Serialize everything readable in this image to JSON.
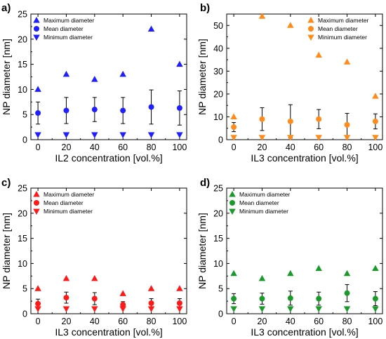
{
  "chart_data": [
    {
      "panel": "a)",
      "type": "scatter",
      "color": "#1f1fff",
      "xlabel": "IL2 concentration [vol.%]",
      "ylabel": "NP diameter [nm]",
      "xlim": [
        -5,
        105
      ],
      "ylim": [
        0,
        25
      ],
      "xticks": [
        0,
        20,
        40,
        60,
        80,
        100
      ],
      "yticks": [
        0,
        5,
        10,
        15,
        20,
        25
      ],
      "legend_position": "top-left",
      "series": [
        {
          "name": "Maximum diameter",
          "marker": "triangle-up",
          "x": [
            0,
            20,
            40,
            60,
            80,
            100
          ],
          "y": [
            10,
            13,
            12,
            13,
            22,
            15
          ]
        },
        {
          "name": "Mean diameter",
          "marker": "circle",
          "x": [
            0,
            20,
            40,
            60,
            80,
            100
          ],
          "y": [
            5.3,
            5.8,
            6.0,
            5.8,
            6.5,
            6.3
          ],
          "error": [
            2.2,
            2.6,
            2.4,
            2.6,
            3.4,
            3.4
          ]
        },
        {
          "name": "Minimum diameter",
          "marker": "triangle-down",
          "x": [
            0,
            20,
            40,
            60,
            80,
            100
          ],
          "y": [
            1,
            1,
            1,
            1,
            1,
            1
          ]
        }
      ]
    },
    {
      "panel": "b)",
      "type": "scatter",
      "color": "#ff8c1a",
      "xlabel": "IL3 concentration [vol.%]",
      "ylabel": "NP diameter [nm]",
      "xlim": [
        -5,
        105
      ],
      "ylim": [
        0,
        55
      ],
      "xticks": [
        0,
        20,
        40,
        60,
        80,
        100
      ],
      "yticks": [
        0,
        10,
        20,
        30,
        40,
        50
      ],
      "legend_position": "top-right",
      "series": [
        {
          "name": "Maximum diameter",
          "marker": "triangle-up",
          "x": [
            0,
            20,
            40,
            60,
            80,
            100
          ],
          "y": [
            10,
            54,
            50,
            37,
            34,
            19
          ]
        },
        {
          "name": "Mean diameter",
          "marker": "circle",
          "x": [
            0,
            20,
            40,
            60,
            80,
            100
          ],
          "y": [
            5.5,
            9,
            8,
            9,
            6.5,
            8
          ],
          "error": [
            2.0,
            5.0,
            7.3,
            4.2,
            5.0,
            3.3
          ]
        },
        {
          "name": "Minimum diameter",
          "marker": "triangle-down",
          "x": [
            0,
            20,
            40,
            60,
            80,
            100
          ],
          "y": [
            1,
            1,
            1,
            1,
            1,
            1
          ]
        }
      ]
    },
    {
      "panel": "c)",
      "type": "scatter",
      "color": "#ff1a1a",
      "xlabel": "IL3 concentration [vol.%]",
      "ylabel": "NP diameter [nm]",
      "xlim": [
        -5,
        105
      ],
      "ylim": [
        0,
        25
      ],
      "xticks": [
        0,
        20,
        40,
        60,
        80,
        100
      ],
      "yticks": [
        0,
        5,
        10,
        15,
        20,
        25
      ],
      "legend_position": "top-left",
      "series": [
        {
          "name": "Maximum diameter",
          "marker": "triangle-up",
          "x": [
            0,
            20,
            40,
            60,
            80,
            100
          ],
          "y": [
            5,
            7,
            7,
            4,
            5,
            5
          ]
        },
        {
          "name": "Mean diameter",
          "marker": "circle",
          "x": [
            0,
            20,
            40,
            60,
            80,
            100
          ],
          "y": [
            2,
            3.2,
            3,
            1.8,
            2.1,
            2.1
          ],
          "error": [
            0.9,
            1.1,
            1.2,
            0.6,
            0.9,
            0.9
          ]
        },
        {
          "name": "Minimum diameter",
          "marker": "triangle-down",
          "x": [
            0,
            20,
            40,
            60,
            80,
            100
          ],
          "y": [
            1,
            1,
            1,
            1,
            1,
            1
          ]
        }
      ]
    },
    {
      "panel": "d)",
      "type": "scatter",
      "color": "#1a9a2a",
      "xlabel": "IL3 concentration [vol.%]",
      "ylabel": "NP diameter [nm]",
      "xlim": [
        -5,
        105
      ],
      "ylim": [
        0,
        25
      ],
      "xticks": [
        0,
        20,
        40,
        60,
        80,
        100
      ],
      "yticks": [
        0,
        5,
        10,
        15,
        20,
        25
      ],
      "legend_position": "top-left",
      "series": [
        {
          "name": "Maximum diameter",
          "marker": "triangle-up",
          "x": [
            0,
            20,
            40,
            60,
            80,
            100
          ],
          "y": [
            8,
            7,
            8,
            9,
            8,
            9
          ]
        },
        {
          "name": "Mean diameter",
          "marker": "circle",
          "x": [
            0,
            20,
            40,
            60,
            80,
            100
          ],
          "y": [
            3,
            3,
            3.1,
            3,
            4.1,
            3
          ],
          "error": [
            1.0,
            1.1,
            1.4,
            1.3,
            1.7,
            1.4
          ]
        },
        {
          "name": "Minimum diameter",
          "marker": "triangle-down",
          "x": [
            0,
            20,
            40,
            60,
            80,
            100
          ],
          "y": [
            1,
            1,
            1,
            1,
            1,
            1
          ]
        }
      ]
    }
  ]
}
